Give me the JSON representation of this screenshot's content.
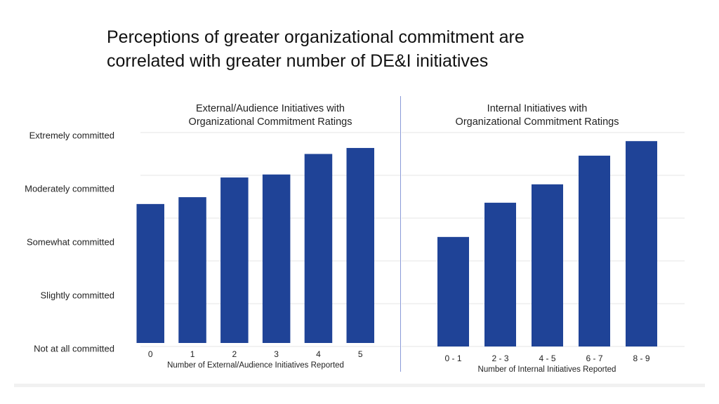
{
  "title_lines": [
    "Perceptions of greater organizational commitment are",
    "correlated with greater number of DE&I initiatives"
  ],
  "y_tick_labels": [
    "Extremely committed",
    "Moderately committed",
    "Somewhat committed",
    "Slightly committed",
    "Not at all committed"
  ],
  "chart_data": [
    {
      "type": "bar",
      "title": "External/Audience Initiatives with Organizational Commitment Ratings",
      "title_lines": [
        "External/Audience Initiatives with",
        "Organizational Commitment Ratings"
      ],
      "xlabel": "Number of External/Audience Initiatives Reported",
      "categories": [
        "0",
        "1",
        "2",
        "3",
        "4",
        "5"
      ],
      "values": [
        3.33,
        3.49,
        3.95,
        4.02,
        4.5,
        4.64
      ],
      "ylim": [
        0,
        5
      ],
      "grid": true,
      "color": "#1f4397"
    },
    {
      "type": "bar",
      "title": "Internal Initiatives with Organizational Commitment Ratings",
      "title_lines": [
        "Internal Initiatives with",
        "Organizational Commitment Ratings"
      ],
      "xlabel": "Number of Internal Initiatives Reported",
      "categories": [
        "0 - 1",
        "2 - 3",
        "4 - 5",
        "6 - 7",
        "8 - 9"
      ],
      "values": [
        2.56,
        3.36,
        3.79,
        4.46,
        4.8
      ],
      "ylim": [
        0,
        5
      ],
      "grid": true,
      "color": "#1f4397"
    }
  ]
}
